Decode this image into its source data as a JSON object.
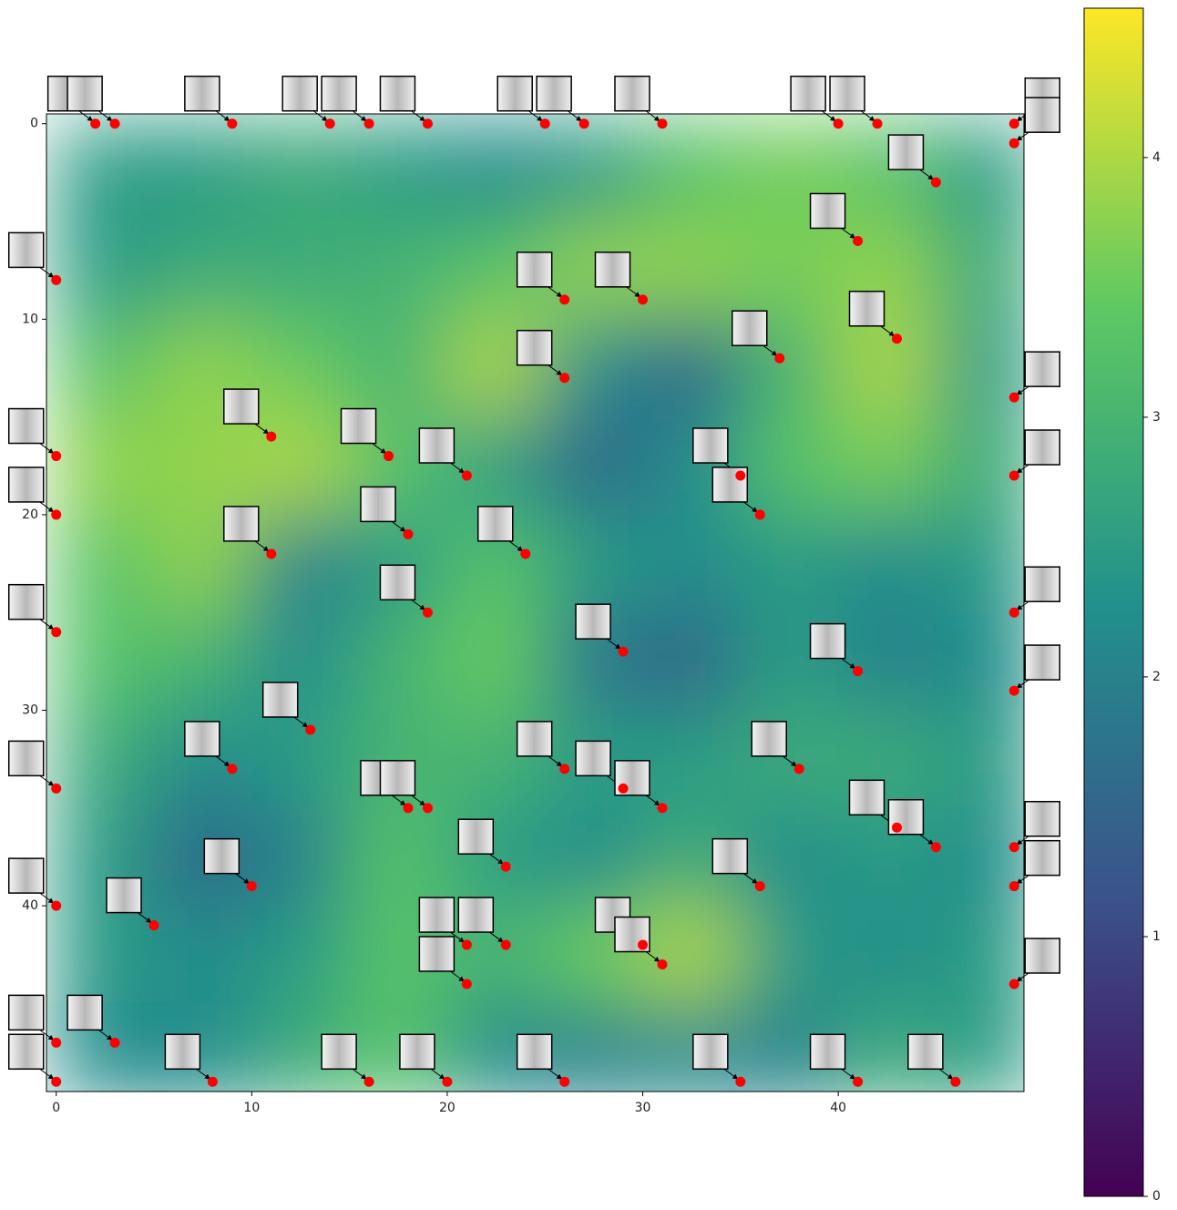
{
  "chart_data": {
    "type": "contour",
    "xlim": [
      -0.5,
      49.5
    ],
    "ylim": [
      49.5,
      -0.5
    ],
    "xticks": [
      0,
      10,
      20,
      30,
      40
    ],
    "yticks": [
      0,
      10,
      20,
      30,
      40
    ],
    "colormap": "viridis",
    "zlim": [
      0,
      4.575
    ],
    "zticks": [
      0,
      1,
      2,
      3,
      4
    ],
    "grid": {
      "x": [
        2.5,
        7.5,
        12.5,
        17.5,
        22.5,
        27.5,
        32.5,
        37.5,
        42.5,
        47.5
      ],
      "y": [
        2.5,
        7.5,
        12.5,
        17.5,
        22.5,
        27.5,
        32.5,
        37.5,
        42.5,
        47.5
      ],
      "z": [
        [
          2.5,
          2.5,
          2.8,
          2.5,
          2.2,
          2.5,
          3.3,
          3.6,
          3.3,
          2.5
        ],
        [
          2.5,
          2.8,
          2.8,
          3.0,
          3.3,
          3.8,
          3.8,
          3.6,
          3.8,
          2.8
        ],
        [
          3.3,
          3.8,
          3.5,
          3.0,
          4.0,
          2.2,
          1.5,
          3.0,
          4.0,
          2.5
        ],
        [
          3.8,
          3.8,
          4.0,
          3.3,
          2.5,
          1.5,
          2.2,
          3.3,
          3.6,
          2.8
        ],
        [
          3.3,
          3.8,
          2.0,
          2.5,
          3.3,
          2.5,
          2.2,
          2.5,
          2.2,
          2.5
        ],
        [
          3.3,
          3.0,
          2.2,
          3.0,
          3.5,
          1.8,
          1.5,
          2.5,
          2.0,
          2.2
        ],
        [
          2.8,
          2.2,
          2.5,
          3.0,
          3.0,
          2.5,
          2.5,
          2.8,
          2.8,
          2.5
        ],
        [
          2.5,
          1.5,
          2.0,
          3.3,
          2.5,
          2.2,
          2.8,
          2.2,
          2.5,
          2.2
        ],
        [
          2.5,
          2.2,
          2.5,
          3.3,
          3.0,
          3.5,
          4.0,
          2.5,
          2.2,
          2.5
        ],
        [
          2.2,
          2.2,
          2.8,
          3.3,
          2.2,
          2.0,
          2.2,
          2.0,
          2.8,
          2.5
        ]
      ]
    },
    "points": {
      "color": "#ff0000",
      "x": [
        2,
        3,
        9,
        14,
        16,
        19,
        25,
        27,
        31,
        40,
        42,
        49,
        49,
        45,
        41,
        0,
        26,
        30,
        43,
        37,
        26,
        49,
        11,
        0,
        17,
        21,
        35,
        49,
        0,
        36,
        18,
        11,
        24,
        19,
        49,
        0,
        29,
        41,
        49,
        13,
        9,
        26,
        38,
        0,
        29,
        18,
        19,
        31,
        43,
        45,
        49,
        23,
        10,
        36,
        49,
        0,
        5,
        21,
        23,
        30,
        31,
        21,
        49,
        3,
        0,
        0,
        8,
        16,
        20,
        26,
        35,
        41,
        46
      ],
      "y": [
        0,
        0,
        0,
        0,
        0,
        0,
        0,
        0,
        0,
        0,
        0,
        0,
        1,
        3,
        6,
        8,
        9,
        9,
        11,
        12,
        13,
        14,
        16,
        17,
        17,
        18,
        18,
        18,
        20,
        20,
        21,
        22,
        22,
        25,
        25,
        26,
        27,
        28,
        29,
        31,
        33,
        33,
        33,
        34,
        34,
        35,
        35,
        35,
        36,
        37,
        37,
        38,
        39,
        39,
        39,
        40,
        41,
        42,
        42,
        42,
        43,
        44,
        44,
        47,
        47,
        49,
        49,
        49,
        49,
        49,
        49,
        49,
        49
      ]
    }
  }
}
